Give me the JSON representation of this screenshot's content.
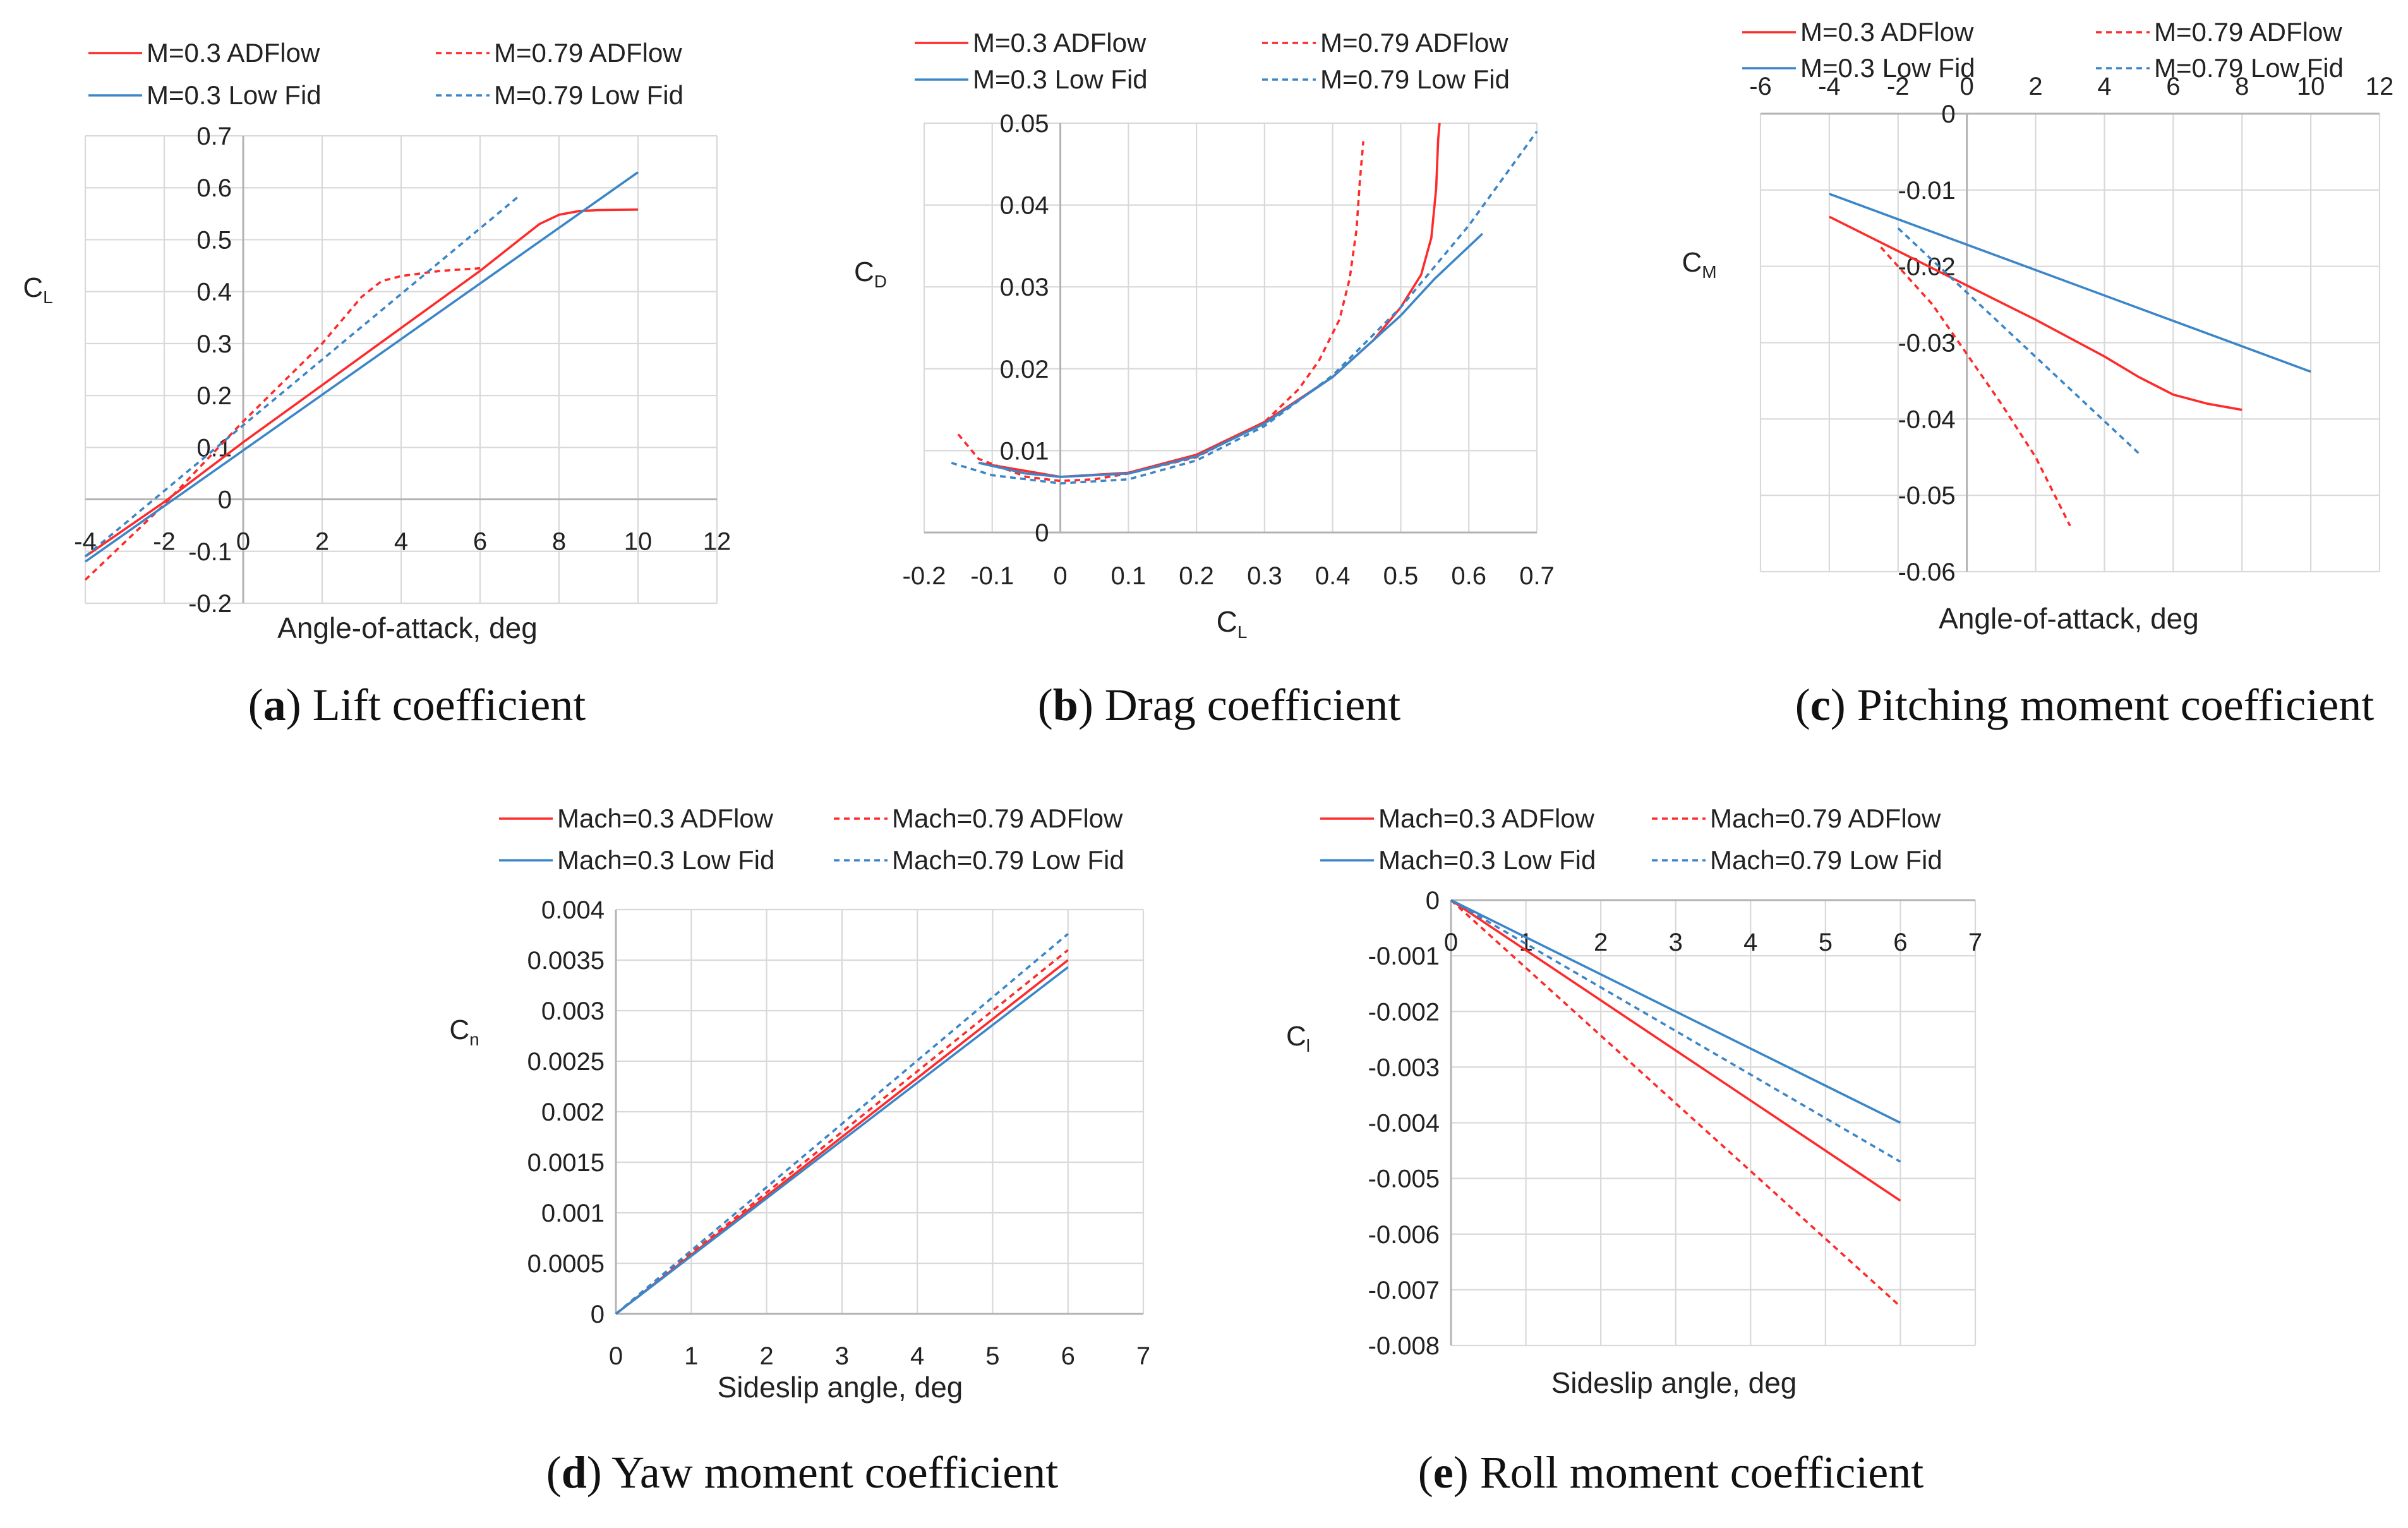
{
  "colors": {
    "adflow": "#ff2a2a",
    "lowfid": "#3b86c8",
    "grid": "#d9d9d9",
    "axis": "#b3b3b3"
  },
  "chart_data": [
    {
      "id": "a",
      "type": "line",
      "caption_letter": "a",
      "caption_text": "Lift coefficient",
      "title": "",
      "xlabel": "Angle-of-attack, deg",
      "ylabel": "C",
      "ylabel_sub": "L",
      "xlim": [
        -4,
        12
      ],
      "ylim": [
        -0.2,
        0.7
      ],
      "xticks": [
        -4,
        -2,
        0,
        2,
        4,
        6,
        8,
        10,
        12
      ],
      "xtick_labels": [
        "-4",
        "-2",
        "0",
        "2",
        "4",
        "6",
        "8",
        "10",
        "12"
      ],
      "yticks": [
        -0.2,
        -0.1,
        0,
        0.1,
        0.2,
        0.3,
        0.4,
        0.5,
        0.6,
        0.7
      ],
      "ytick_labels": [
        "-0.2",
        "-0.1",
        "0",
        "0.1",
        "0.2",
        "0.3",
        "0.4",
        "0.5",
        "0.6",
        "0.7"
      ],
      "legend": [
        "M=0.3 ADFlow",
        "M=0.79 ADFlow",
        "M=0.3 Low Fid",
        "M=0.79 Low Fid"
      ],
      "series": [
        {
          "name": "M=0.3 ADFlow",
          "color": "adflow",
          "dashed": false,
          "x": [
            -4,
            -2,
            0,
            2,
            4,
            6,
            7,
            7.5,
            8,
            8.5,
            9,
            10
          ],
          "y": [
            -0.11,
            -0.005,
            0.11,
            0.22,
            0.33,
            0.44,
            0.5,
            0.53,
            0.548,
            0.555,
            0.557,
            0.558
          ]
        },
        {
          "name": "M=0.79 ADFlow",
          "color": "adflow",
          "dashed": true,
          "x": [
            -4,
            -2,
            0,
            2,
            3,
            3.5,
            4,
            5,
            6
          ],
          "y": [
            -0.155,
            -0.01,
            0.15,
            0.3,
            0.39,
            0.42,
            0.43,
            0.44,
            0.445
          ]
        },
        {
          "name": "M=0.3 Low Fid",
          "color": "lowfid",
          "dashed": false,
          "x": [
            -4,
            10
          ],
          "y": [
            -0.12,
            0.63
          ]
        },
        {
          "name": "M=0.79 Low Fid",
          "color": "lowfid",
          "dashed": true,
          "x": [
            -4,
            7
          ],
          "y": [
            -0.11,
            0.585
          ]
        }
      ]
    },
    {
      "id": "b",
      "type": "line",
      "caption_letter": "b",
      "caption_text": "Drag coefficient",
      "title": "",
      "xlabel": "C",
      "xlabel_sub": "L",
      "ylabel": "C",
      "ylabel_sub": "D",
      "xlim": [
        -0.2,
        0.7
      ],
      "ylim": [
        0,
        0.05
      ],
      "xticks": [
        -0.2,
        -0.1,
        0,
        0.1,
        0.2,
        0.3,
        0.4,
        0.5,
        0.6,
        0.7
      ],
      "xtick_labels": [
        "-0.2",
        "-0.1",
        "0",
        "0.1",
        "0.2",
        "0.3",
        "0.4",
        "0.5",
        "0.6",
        "0.7"
      ],
      "yticks": [
        0,
        0.01,
        0.02,
        0.03,
        0.04,
        0.05
      ],
      "ytick_labels": [
        "0",
        "0.01",
        "0.02",
        "0.03",
        "0.04",
        "0.05"
      ],
      "legend": [
        "M=0.3 ADFlow",
        "M=0.79 ADFlow",
        "M=0.3 Low Fid",
        "M=0.79 Low Fid"
      ],
      "series": [
        {
          "name": "M=0.3 ADFlow",
          "color": "adflow",
          "dashed": false,
          "x": [
            -0.12,
            0,
            0.1,
            0.2,
            0.3,
            0.4,
            0.46,
            0.5,
            0.53,
            0.545,
            0.552,
            0.555,
            0.557
          ],
          "y": [
            0.0085,
            0.0068,
            0.0073,
            0.0095,
            0.0135,
            0.019,
            0.0235,
            0.0275,
            0.0315,
            0.036,
            0.042,
            0.048,
            0.05
          ]
        },
        {
          "name": "M=0.79 ADFlow",
          "color": "adflow",
          "dashed": true,
          "x": [
            -0.15,
            -0.12,
            -0.05,
            0,
            0.05,
            0.1,
            0.2,
            0.3,
            0.35,
            0.38,
            0.41,
            0.425,
            0.435,
            0.44,
            0.445
          ],
          "y": [
            0.012,
            0.009,
            0.0068,
            0.0063,
            0.0065,
            0.0072,
            0.0092,
            0.0135,
            0.0175,
            0.021,
            0.026,
            0.031,
            0.037,
            0.043,
            0.0478
          ]
        },
        {
          "name": "M=0.3 Low Fid",
          "color": "lowfid",
          "dashed": false,
          "x": [
            -0.12,
            -0.05,
            0,
            0.1,
            0.2,
            0.3,
            0.4,
            0.5,
            0.55,
            0.62
          ],
          "y": [
            0.0085,
            0.0072,
            0.0068,
            0.0072,
            0.0093,
            0.0133,
            0.019,
            0.0265,
            0.031,
            0.0365
          ]
        },
        {
          "name": "M=0.79 Low Fid",
          "color": "lowfid",
          "dashed": true,
          "x": [
            -0.16,
            -0.1,
            0,
            0.1,
            0.2,
            0.3,
            0.4,
            0.5,
            0.6,
            0.7
          ],
          "y": [
            0.0085,
            0.007,
            0.006,
            0.0065,
            0.0088,
            0.013,
            0.0192,
            0.0275,
            0.0375,
            0.049
          ]
        }
      ]
    },
    {
      "id": "c",
      "type": "line",
      "caption_letter": "c",
      "caption_text": "Pitching moment coefficient",
      "title": "",
      "xlabel": "Angle-of-attack, deg",
      "ylabel": "C",
      "ylabel_sub": "M",
      "xlim": [
        -6,
        12
      ],
      "ylim": [
        -0.06,
        0
      ],
      "xticks": [
        -6,
        -4,
        -2,
        0,
        2,
        4,
        6,
        8,
        10,
        12
      ],
      "xtick_labels": [
        "-6",
        "-4",
        "-2",
        "0",
        "2",
        "4",
        "6",
        "8",
        "10",
        "12"
      ],
      "yticks": [
        -0.06,
        -0.05,
        -0.04,
        -0.03,
        -0.02,
        -0.01,
        0
      ],
      "ytick_labels": [
        "-0.06",
        "-0.05",
        "-0.04",
        "-0.03",
        "-0.02",
        "-0.01",
        "0"
      ],
      "legend": [
        "M=0.3 ADFlow",
        "M=0.79 ADFlow",
        "M=0.3 Low Fid",
        "M=0.79 Low Fid"
      ],
      "series": [
        {
          "name": "M=0.3 ADFlow",
          "color": "adflow",
          "dashed": false,
          "x": [
            -4,
            -2,
            0,
            2,
            4,
            5,
            6,
            7,
            8
          ],
          "y": [
            -0.0135,
            -0.018,
            -0.0225,
            -0.027,
            -0.0318,
            -0.0345,
            -0.0368,
            -0.038,
            -0.0388
          ]
        },
        {
          "name": "M=0.79 ADFlow",
          "color": "adflow",
          "dashed": true,
          "x": [
            -2.5,
            -1,
            0,
            1,
            2,
            3
          ],
          "y": [
            -0.0175,
            -0.025,
            -0.0315,
            -0.038,
            -0.045,
            -0.054
          ]
        },
        {
          "name": "M=0.3 Low Fid",
          "color": "lowfid",
          "dashed": false,
          "x": [
            -4,
            10
          ],
          "y": [
            -0.0105,
            -0.0338
          ]
        },
        {
          "name": "M=0.79 Low Fid",
          "color": "lowfid",
          "dashed": true,
          "x": [
            -2,
            5
          ],
          "y": [
            -0.015,
            -0.0445
          ]
        }
      ]
    },
    {
      "id": "d",
      "type": "line",
      "caption_letter": "d",
      "caption_text": "Yaw moment coefficient",
      "title": "",
      "xlabel": "Sideslip angle, deg",
      "ylabel": "C",
      "ylabel_sub": "n",
      "xlim": [
        0,
        7
      ],
      "ylim": [
        0,
        0.004
      ],
      "xticks": [
        0,
        1,
        2,
        3,
        4,
        5,
        6,
        7
      ],
      "xtick_labels": [
        "0",
        "1",
        "2",
        "3",
        "4",
        "5",
        "6",
        "7"
      ],
      "yticks": [
        0,
        0.0005,
        0.001,
        0.0015,
        0.002,
        0.0025,
        0.003,
        0.0035,
        0.004
      ],
      "ytick_labels": [
        "0",
        "0.0005",
        "0.001",
        "0.0015",
        "0.002",
        "0.0025",
        "0.003",
        "0.0035",
        "0.004"
      ],
      "legend": [
        "Mach=0.3 ADFlow",
        "Mach=0.79 ADFlow",
        "Mach=0.3 Low Fid",
        "Mach=0.79 Low Fid"
      ],
      "series": [
        {
          "name": "Mach=0.3 ADFlow",
          "color": "adflow",
          "dashed": false,
          "x": [
            0,
            6
          ],
          "y": [
            0,
            0.0035
          ]
        },
        {
          "name": "Mach=0.79 ADFlow",
          "color": "adflow",
          "dashed": true,
          "x": [
            0,
            6
          ],
          "y": [
            0,
            0.0036
          ]
        },
        {
          "name": "Mach=0.3 Low Fid",
          "color": "lowfid",
          "dashed": false,
          "x": [
            0,
            6
          ],
          "y": [
            0,
            0.00343
          ]
        },
        {
          "name": "Mach=0.79 Low Fid",
          "color": "lowfid",
          "dashed": true,
          "x": [
            0,
            6
          ],
          "y": [
            0,
            0.00376
          ]
        }
      ]
    },
    {
      "id": "e",
      "type": "line",
      "caption_letter": "e",
      "caption_text": "Roll moment coefficient",
      "title": "",
      "xlabel": "Sideslip angle, deg",
      "ylabel": "C",
      "ylabel_sub": "l",
      "xlim": [
        0,
        7
      ],
      "ylim": [
        -0.008,
        0
      ],
      "xticks": [
        0,
        1,
        2,
        3,
        4,
        5,
        6,
        7
      ],
      "xtick_labels": [
        "0",
        "1",
        "2",
        "3",
        "4",
        "5",
        "6",
        "7"
      ],
      "yticks": [
        -0.008,
        -0.007,
        -0.006,
        -0.005,
        -0.004,
        -0.003,
        -0.002,
        -0.001,
        0
      ],
      "ytick_labels": [
        "-0.008",
        "-0.007",
        "-0.006",
        "-0.005",
        "-0.004",
        "-0.003",
        "-0.002",
        "-0.001",
        "0"
      ],
      "legend": [
        "Mach=0.3 ADFlow",
        "Mach=0.79 ADFlow",
        "Mach=0.3 Low Fid",
        "Mach=0.79 Low Fid"
      ],
      "series": [
        {
          "name": "Mach=0.3 ADFlow",
          "color": "adflow",
          "dashed": false,
          "x": [
            0,
            6
          ],
          "y": [
            0,
            -0.0054
          ]
        },
        {
          "name": "Mach=0.79 ADFlow",
          "color": "adflow",
          "dashed": true,
          "x": [
            0,
            6
          ],
          "y": [
            0,
            -0.0073
          ]
        },
        {
          "name": "Mach=0.3 Low Fid",
          "color": "lowfid",
          "dashed": false,
          "x": [
            0,
            6
          ],
          "y": [
            0,
            -0.004
          ]
        },
        {
          "name": "Mach=0.79 Low Fid",
          "color": "lowfid",
          "dashed": true,
          "x": [
            0,
            6
          ],
          "y": [
            0,
            -0.0047
          ]
        }
      ]
    }
  ]
}
